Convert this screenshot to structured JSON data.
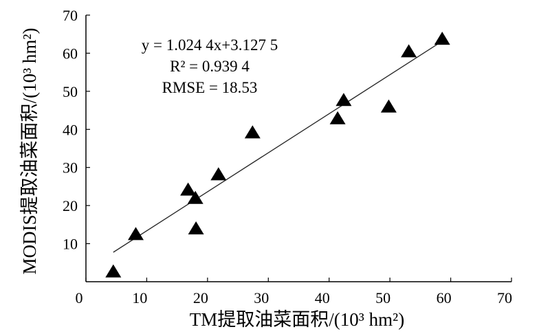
{
  "chart_data": {
    "type": "scatter",
    "title": "",
    "xlabel": "TM提取油菜面积/(10³ hm²)",
    "ylabel": "MODIS提取油菜面积/(10³ hm²)",
    "xlim": [
      0,
      70
    ],
    "ylim": [
      0,
      70
    ],
    "xticks": [
      "0",
      "10",
      "20",
      "30",
      "40",
      "50",
      "60",
      "70"
    ],
    "yticks": [
      "10",
      "20",
      "30",
      "40",
      "50",
      "60",
      "70"
    ],
    "grid": false,
    "marker": "triangle",
    "marker_color": "#000000",
    "points": [
      {
        "x": 4.5,
        "y": 2.5
      },
      {
        "x": 8.2,
        "y": 12.3
      },
      {
        "x": 16.8,
        "y": 24.0
      },
      {
        "x": 18.0,
        "y": 21.8
      },
      {
        "x": 18.1,
        "y": 13.8
      },
      {
        "x": 21.8,
        "y": 28.0
      },
      {
        "x": 27.4,
        "y": 39.0
      },
      {
        "x": 41.4,
        "y": 42.7
      },
      {
        "x": 42.4,
        "y": 47.5
      },
      {
        "x": 49.8,
        "y": 45.8
      },
      {
        "x": 53.1,
        "y": 60.3
      },
      {
        "x": 58.6,
        "y": 63.6
      }
    ],
    "fit_line": {
      "slope": 1.0244,
      "intercept": 3.1275,
      "x_range": [
        4.5,
        58.6
      ]
    },
    "annotations": {
      "equation": "y = 1.024 4x+3.127 5",
      "r_squared": "R² = 0.939 4",
      "rmse": "RMSE = 18.53"
    }
  }
}
